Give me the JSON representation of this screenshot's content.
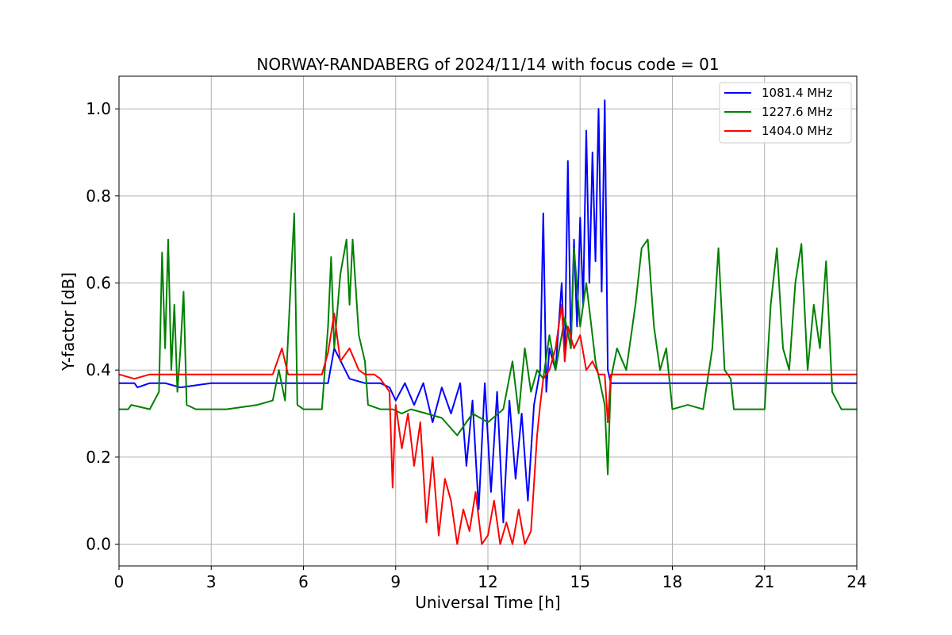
{
  "chart_data": {
    "type": "line",
    "title": "NORWAY-RANDABERG of 2024/11/14 with focus code = 01",
    "xlabel": "Universal Time [h]",
    "ylabel": "Y-factor [dB]",
    "xlim": [
      0,
      24
    ],
    "ylim": [
      -0.05,
      1.075
    ],
    "xticks": [
      0,
      3,
      6,
      9,
      12,
      15,
      18,
      21,
      24
    ],
    "xtick_labels": [
      "0",
      "3",
      "6",
      "9",
      "12",
      "15",
      "18",
      "21",
      "24"
    ],
    "yticks": [
      0.0,
      0.2,
      0.4,
      0.6,
      0.8,
      1.0
    ],
    "ytick_labels": [
      "0.0",
      "0.2",
      "0.4",
      "0.6",
      "0.8",
      "1.0"
    ],
    "grid": true,
    "legend_position": "top-right",
    "series": [
      {
        "name": "1081.4 MHz",
        "color": "#0000ff",
        "x": [
          0,
          0.5,
          0.6,
          1.0,
          1.5,
          2.0,
          3.0,
          4.0,
          5.0,
          6.0,
          6.8,
          7.0,
          7.5,
          8.0,
          8.5,
          8.8,
          9.0,
          9.3,
          9.6,
          9.9,
          10.2,
          10.5,
          10.8,
          11.1,
          11.3,
          11.5,
          11.7,
          11.9,
          12.1,
          12.3,
          12.5,
          12.7,
          12.9,
          13.1,
          13.3,
          13.5,
          13.7,
          13.8,
          13.9,
          14.0,
          14.2,
          14.4,
          14.5,
          14.6,
          14.7,
          14.8,
          14.9,
          15.0,
          15.1,
          15.2,
          15.3,
          15.4,
          15.5,
          15.6,
          15.7,
          15.8,
          15.9,
          16.0,
          16.5,
          17.0,
          18.0,
          19.0,
          20.0,
          21.0,
          22.0,
          23.0,
          24.0
        ],
        "y": [
          0.37,
          0.37,
          0.36,
          0.37,
          0.37,
          0.36,
          0.37,
          0.37,
          0.37,
          0.37,
          0.37,
          0.45,
          0.38,
          0.37,
          0.37,
          0.36,
          0.33,
          0.37,
          0.32,
          0.37,
          0.28,
          0.36,
          0.3,
          0.37,
          0.18,
          0.33,
          0.08,
          0.37,
          0.12,
          0.35,
          0.05,
          0.33,
          0.15,
          0.3,
          0.1,
          0.32,
          0.4,
          0.76,
          0.35,
          0.45,
          0.4,
          0.6,
          0.42,
          0.88,
          0.45,
          0.7,
          0.5,
          0.75,
          0.55,
          0.95,
          0.6,
          0.9,
          0.65,
          1.0,
          0.58,
          1.02,
          0.4,
          0.37,
          0.37,
          0.37,
          0.37,
          0.37,
          0.37,
          0.37,
          0.37,
          0.37,
          0.37
        ]
      },
      {
        "name": "1227.6 MHz",
        "color": "#008000",
        "x": [
          0,
          0.3,
          0.4,
          1.0,
          1.3,
          1.4,
          1.5,
          1.6,
          1.7,
          1.8,
          1.9,
          2.0,
          2.1,
          2.2,
          2.5,
          3.5,
          4.5,
          5.0,
          5.2,
          5.4,
          5.6,
          5.7,
          5.8,
          6.0,
          6.6,
          6.8,
          6.9,
          7.0,
          7.2,
          7.4,
          7.5,
          7.6,
          7.8,
          8.0,
          8.1,
          8.5,
          8.9,
          9.2,
          9.5,
          10.0,
          10.5,
          11.0,
          11.5,
          12.0,
          12.5,
          12.8,
          13.0,
          13.2,
          13.4,
          13.6,
          13.8,
          14.0,
          14.2,
          14.5,
          14.7,
          14.8,
          15.0,
          15.2,
          15.5,
          15.8,
          15.9,
          16.0,
          16.2,
          16.5,
          16.8,
          17.0,
          17.2,
          17.4,
          17.6,
          17.8,
          18.0,
          18.5,
          19.0,
          19.3,
          19.5,
          19.7,
          19.9,
          20.0,
          20.5,
          21.0,
          21.2,
          21.4,
          21.6,
          21.8,
          22.0,
          22.2,
          22.4,
          22.6,
          22.8,
          23.0,
          23.2,
          23.5,
          24.0
        ],
        "y": [
          0.31,
          0.31,
          0.32,
          0.31,
          0.35,
          0.67,
          0.45,
          0.7,
          0.4,
          0.55,
          0.35,
          0.45,
          0.58,
          0.32,
          0.31,
          0.31,
          0.32,
          0.33,
          0.4,
          0.33,
          0.62,
          0.76,
          0.32,
          0.31,
          0.31,
          0.5,
          0.66,
          0.45,
          0.62,
          0.7,
          0.55,
          0.7,
          0.48,
          0.42,
          0.32,
          0.31,
          0.31,
          0.3,
          0.31,
          0.3,
          0.29,
          0.25,
          0.3,
          0.28,
          0.31,
          0.42,
          0.3,
          0.45,
          0.35,
          0.4,
          0.38,
          0.48,
          0.4,
          0.52,
          0.45,
          0.68,
          0.5,
          0.6,
          0.42,
          0.32,
          0.16,
          0.38,
          0.45,
          0.4,
          0.55,
          0.68,
          0.7,
          0.5,
          0.4,
          0.45,
          0.31,
          0.32,
          0.31,
          0.45,
          0.68,
          0.4,
          0.38,
          0.31,
          0.31,
          0.31,
          0.55,
          0.68,
          0.45,
          0.4,
          0.6,
          0.69,
          0.4,
          0.55,
          0.45,
          0.65,
          0.35,
          0.31,
          0.31
        ]
      },
      {
        "name": "1404.0 MHz",
        "color": "#ff0000",
        "x": [
          0,
          0.5,
          1.0,
          2.0,
          3.0,
          4.0,
          5.0,
          5.3,
          5.5,
          6.0,
          6.6,
          6.8,
          7.0,
          7.2,
          7.5,
          7.8,
          8.0,
          8.3,
          8.5,
          8.8,
          8.9,
          9.0,
          9.2,
          9.4,
          9.6,
          9.8,
          10.0,
          10.2,
          10.4,
          10.6,
          10.8,
          11.0,
          11.2,
          11.4,
          11.6,
          11.8,
          12.0,
          12.2,
          12.4,
          12.6,
          12.8,
          13.0,
          13.2,
          13.4,
          13.6,
          13.7,
          13.8,
          14.0,
          14.2,
          14.4,
          14.5,
          14.6,
          14.8,
          15.0,
          15.2,
          15.4,
          15.6,
          15.8,
          15.9,
          16.0,
          17.0,
          18.0,
          19.0,
          20.0,
          21.0,
          22.0,
          23.0,
          24.0
        ],
        "y": [
          0.39,
          0.38,
          0.39,
          0.39,
          0.39,
          0.39,
          0.39,
          0.45,
          0.39,
          0.39,
          0.39,
          0.44,
          0.53,
          0.42,
          0.45,
          0.4,
          0.39,
          0.39,
          0.38,
          0.35,
          0.13,
          0.32,
          0.22,
          0.3,
          0.18,
          0.28,
          0.05,
          0.2,
          0.02,
          0.15,
          0.1,
          0.0,
          0.08,
          0.03,
          0.12,
          0.0,
          0.02,
          0.1,
          0.0,
          0.05,
          0.0,
          0.08,
          0.0,
          0.03,
          0.25,
          0.32,
          0.38,
          0.4,
          0.45,
          0.55,
          0.42,
          0.5,
          0.45,
          0.48,
          0.4,
          0.42,
          0.39,
          0.39,
          0.28,
          0.39,
          0.39,
          0.39,
          0.39,
          0.39,
          0.39,
          0.39,
          0.39,
          0.39
        ]
      }
    ]
  }
}
